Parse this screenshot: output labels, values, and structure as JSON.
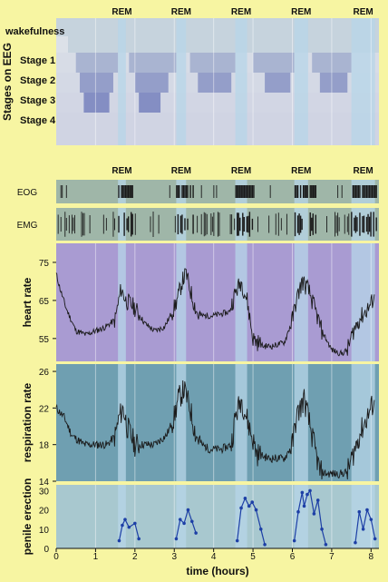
{
  "chart_data": [
    {
      "type": "area",
      "panel": "hypnogram",
      "ylabel": "Stages on EEG",
      "stages": [
        "wakefulness",
        "Stage 1",
        "Stage 2",
        "Stage 3",
        "Stage 4"
      ],
      "rem_label": "REM",
      "rem_periods": [
        [
          1.57,
          1.77
        ],
        [
          3.05,
          3.3
        ],
        [
          4.55,
          4.85
        ],
        [
          6.05,
          6.4
        ],
        [
          7.5,
          8.1
        ]
      ],
      "depth_profile_x": [
        0,
        0.3,
        0.5,
        0.6,
        0.7,
        1.2,
        1.35,
        1.45,
        1.57,
        1.77,
        1.85,
        2.0,
        2.1,
        2.5,
        2.65,
        2.85,
        3.05,
        3.3,
        3.4,
        3.6,
        4.3,
        4.45,
        4.55,
        4.85,
        5.0,
        5.3,
        5.8,
        5.95,
        6.05,
        6.4,
        6.5,
        6.7,
        7.0,
        7.4,
        7.5
      ],
      "depth_profile_y": [
        0.5,
        1,
        2,
        3,
        4,
        4,
        3,
        2,
        1,
        1,
        2,
        3,
        4,
        4,
        3,
        2,
        1,
        1,
        2,
        3,
        3,
        2,
        1,
        1,
        2,
        3,
        3,
        2,
        1,
        1,
        2,
        3,
        3,
        2,
        1
      ]
    },
    {
      "type": "line",
      "panel": "eog-emg",
      "channels": [
        "EOG",
        "EMG"
      ],
      "rem_label": "REM"
    },
    {
      "type": "line",
      "panel": "heart-rate",
      "ylabel": "heart rate",
      "yticks": [
        55,
        65,
        75
      ],
      "ylim": [
        49,
        80
      ],
      "x": [
        0,
        0.1,
        0.25,
        0.5,
        0.75,
        1.0,
        1.25,
        1.5,
        1.57,
        1.65,
        1.77,
        1.9,
        2.0,
        2.25,
        2.5,
        2.75,
        3.0,
        3.1,
        3.2,
        3.3,
        3.45,
        3.6,
        4.0,
        4.4,
        4.55,
        4.7,
        4.85,
        5.0,
        5.25,
        5.5,
        5.8,
        6.0,
        6.1,
        6.25,
        6.4,
        6.5,
        6.75,
        7.0,
        7.25,
        7.4,
        7.55,
        7.7,
        7.85,
        8.0,
        8.1
      ],
      "values": [
        72,
        68,
        63,
        57,
        56,
        57,
        58,
        60,
        64,
        68,
        65,
        64,
        63,
        59,
        57,
        58,
        63,
        66,
        70,
        72,
        66,
        61,
        61,
        62,
        67,
        70,
        65,
        55,
        53,
        53,
        54,
        60,
        65,
        70,
        68,
        65,
        57,
        52,
        51,
        52,
        57,
        60,
        62,
        64,
        67
      ]
    },
    {
      "type": "line",
      "panel": "respiration-rate",
      "ylabel": "respiration rate",
      "yticks": [
        14,
        18,
        22,
        26
      ],
      "ylim": [
        14,
        26.8
      ],
      "x": [
        0,
        0.2,
        0.4,
        0.7,
        1.0,
        1.3,
        1.5,
        1.6,
        1.7,
        1.8,
        1.9,
        2.0,
        2.2,
        2.5,
        2.8,
        3.0,
        3.1,
        3.25,
        3.4,
        3.55,
        3.7,
        3.9,
        4.2,
        4.45,
        4.55,
        4.7,
        4.9,
        5.1,
        5.4,
        5.8,
        6.0,
        6.1,
        6.3,
        6.45,
        6.55,
        6.7,
        6.9,
        7.2,
        7.4,
        7.55,
        7.7,
        7.9,
        8.1
      ],
      "values": [
        22,
        21,
        19,
        18,
        18,
        18,
        19,
        21,
        22,
        20,
        19,
        18,
        18,
        18,
        19,
        21,
        23,
        24,
        22,
        19,
        18,
        17.5,
        17.5,
        18,
        21,
        23,
        20,
        17,
        16.5,
        16.5,
        18,
        21,
        23,
        20,
        18,
        15,
        14.8,
        14.8,
        15,
        17,
        19,
        21,
        23
      ]
    },
    {
      "type": "line",
      "panel": "penile-erection",
      "ylabel": "penile erection",
      "xlabel": "time (hours)",
      "xticks": [
        0,
        1,
        2,
        3,
        4,
        5,
        6,
        7,
        8
      ],
      "xlim": [
        0,
        8.2
      ],
      "yticks": [
        0,
        10,
        20,
        30
      ],
      "ylim": [
        0,
        33
      ],
      "series": [
        {
          "x": [
            1.6,
            1.68,
            1.75,
            1.85,
            2.0,
            2.1
          ],
          "values": [
            4,
            12,
            15,
            11,
            13,
            5
          ]
        },
        {
          "x": [
            3.05,
            3.15,
            3.25,
            3.35,
            3.45,
            3.55
          ],
          "values": [
            5,
            15,
            13,
            20,
            14,
            8
          ]
        },
        {
          "x": [
            4.6,
            4.7,
            4.8,
            4.9,
            4.98,
            5.08,
            5.2,
            5.3
          ],
          "values": [
            4,
            21,
            26,
            22,
            24,
            20,
            10,
            2
          ]
        },
        {
          "x": [
            6.05,
            6.15,
            6.25,
            6.3,
            6.38,
            6.45,
            6.55,
            6.65,
            6.75,
            6.85
          ],
          "values": [
            4,
            19,
            29,
            22,
            28,
            30,
            18,
            25,
            10,
            2
          ]
        },
        {
          "x": [
            7.6,
            7.7,
            7.8,
            7.9,
            8.0,
            8.1
          ],
          "values": [
            3,
            19,
            10,
            20,
            15,
            5
          ]
        }
      ]
    }
  ],
  "colors": {
    "hypno_bg": "#c6d3dd",
    "hypno_deep": "#5f66b3",
    "hypno_light": "#dfe3ea",
    "rem_band": "#b7d6e8",
    "eog_bg": "#9fb6a8",
    "hr_bg": "#a99bd2",
    "resp_bg": "#6f9fb1",
    "pe_bg": "#a8c8cf",
    "line": "#1a1a1a",
    "pe_line": "#1d3fa6",
    "background": "#f7f5a2"
  }
}
